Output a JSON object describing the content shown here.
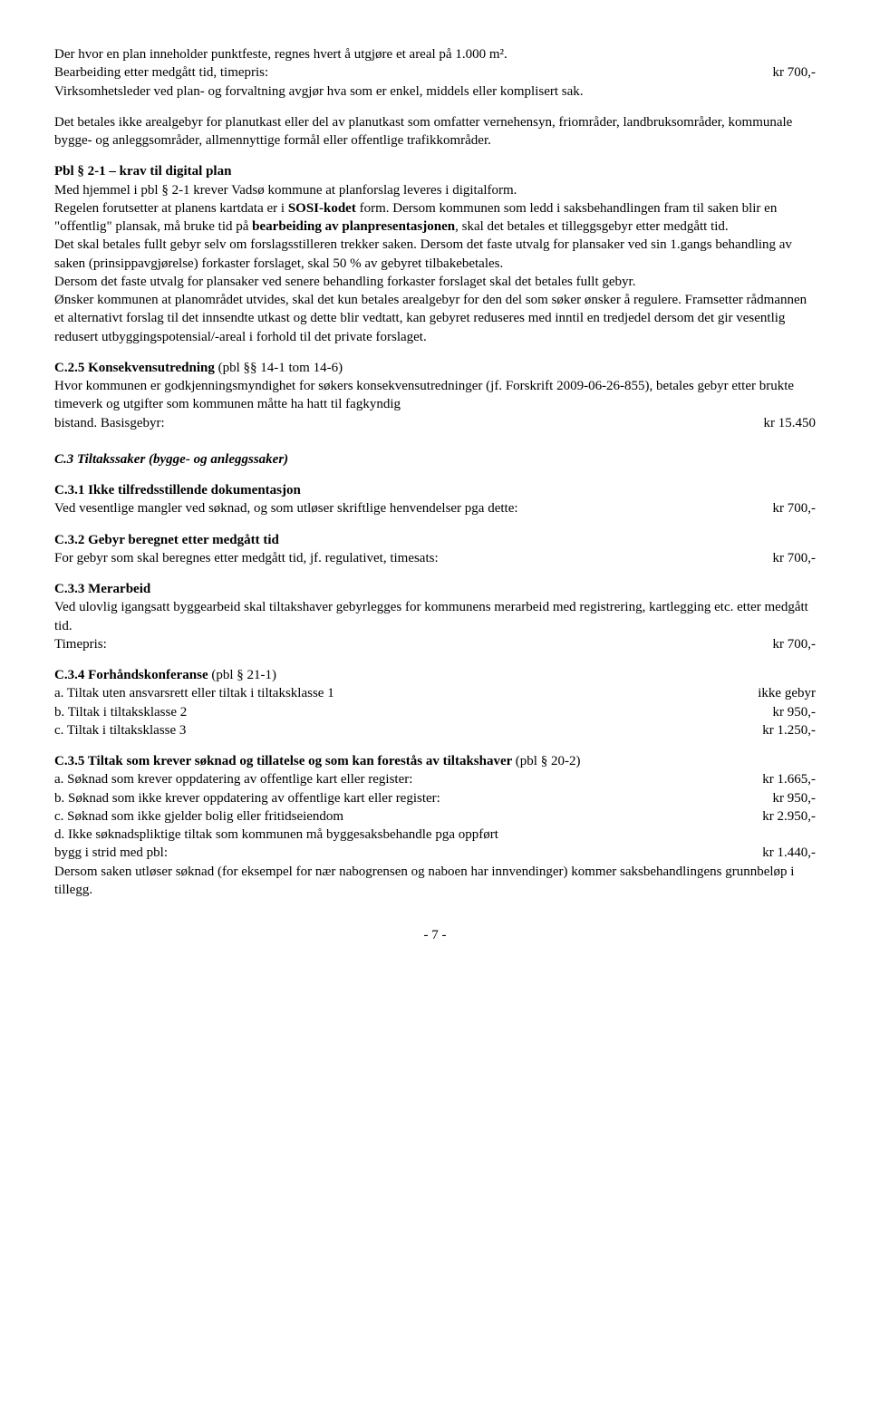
{
  "p1": "Der hvor en plan inneholder punktfeste, regnes hvert å utgjøre et areal på 1.000 m².",
  "p2_left": "Bearbeiding etter medgått tid, timepris:",
  "p2_right": "kr 700,-",
  "p3": "Virksomhetsleder ved plan- og forvaltning avgjør hva som er enkel, middels eller komplisert sak.",
  "p4": "Det betales ikke arealgebyr for planutkast eller del av planutkast som omfatter vernehensyn, friområder, landbruksområder, kommunale bygge- og anleggsområder, allmennyttige formål eller offentlige trafikkområder.",
  "p5_title": "Pbl § 2-1 – krav til digital plan",
  "p5a": "Med hjemmel i pbl § 2-1 krever Vadsø kommune at planforslag leveres i digitalform.",
  "p5b_a": "Regelen forutsetter at planens kartdata er i ",
  "p5b_b": "SOSI-kodet",
  "p5b_c": " form. Dersom kommunen som ledd i saksbehandlingen fram til saken blir en \"offentlig\" plansak, må bruke tid på ",
  "p5b_d": "bearbeiding av planpresentasjonen",
  "p5b_e": ", skal det betales et tilleggsgebyr etter medgått tid.",
  "p5c": "Det skal betales fullt gebyr selv om forslagsstilleren trekker saken. Dersom det faste utvalg for plansaker ved sin 1.gangs behandling av saken (prinsippavgjørelse) forkaster forslaget, skal 50 % av gebyret tilbakebetales.",
  "p5d": "Dersom det faste utvalg for plansaker ved senere behandling forkaster forslaget skal det betales fullt gebyr.",
  "p5e": "Ønsker kommunen at planområdet utvides, skal det kun betales arealgebyr for den del som søker ønsker å regulere. Framsetter rådmannen et alternativt forslag til det innsendte utkast og dette blir vedtatt, kan gebyret reduseres med inntil en tredjedel dersom det gir vesentlig redusert utbyggingspotensial/-areal i forhold til det private forslaget.",
  "c25_title_a": "C.2.5   Konsekvensutredning ",
  "c25_title_b": "(pbl §§ 14-1 tom 14-6)",
  "c25_left_a": "Hvor kommunen er godkjenningsmyndighet for søkers konsekvensutredninger (jf. Forskrift 2009-06-26-855), betales gebyr etter brukte timeverk og utgifter som kommunen måtte ha hatt til fagkyndig",
  "c25_left_b": "bistand. Basisgebyr:",
  "c25_right": "kr 15.450",
  "c3_title": "C.3 Tiltakssaker (bygge- og anleggssaker)",
  "c31_title": "C.3.1   Ikke tilfredsstillende dokumentasjon",
  "c31_left": "Ved vesentlige mangler ved søknad, og som utløser skriftlige henvendelser pga dette:",
  "c31_right": "kr 700,-",
  "c32_title": "C.3.2   Gebyr beregnet etter medgått tid",
  "c32_left": "For gebyr som skal beregnes etter medgått tid, jf. regulativet, timesats:",
  "c32_right": "kr 700,-",
  "c33_title": "C.3.3   Merarbeid",
  "c33_text": "Ved ulovlig igangsatt byggearbeid skal tiltakshaver gebyrlegges for kommunens merarbeid med registrering, kartlegging etc. etter medgått tid.",
  "c33_left": "Timepris:",
  "c33_right": "kr 700,-",
  "c34_title_a": "C.3.4   Forhåndskonferanse ",
  "c34_title_b": "(pbl § 21-1)",
  "c34_a_left": "a. Tiltak uten ansvarsrett eller tiltak i tiltaksklasse 1",
  "c34_a_right": "ikke gebyr",
  "c34_b_left": "b. Tiltak i tiltaksklasse 2",
  "c34_b_right": "kr 950,-",
  "c34_c_left": "c. Tiltak i tiltaksklasse 3",
  "c34_c_right": "kr 1.250,-",
  "c35_title_a": "C.3.5   Tiltak som krever søknad og tillatelse og som kan forestås av tiltakshaver ",
  "c35_title_b": "(pbl § 20-2)",
  "c35_a_left": "a. Søknad som krever oppdatering av offentlige kart eller register:",
  "c35_a_right": "kr 1.665,-",
  "c35_b_left": "b. Søknad som ikke krever oppdatering av offentlige kart eller register:",
  "c35_b_right": "kr 950,-",
  "c35_c_left": "c. Søknad som ikke gjelder bolig eller fritidseiendom",
  "c35_c_right": "kr 2.950,-",
  "c35_d_text": "d. Ikke søknadspliktige tiltak som kommunen må byggesaksbehandle pga oppført",
  "c35_d_left": "bygg i strid med pbl:",
  "c35_d_right": "kr 1.440,-",
  "c35_e": "Dersom saken utløser søknad (for eksempel for nær nabogrensen og naboen har innvendinger) kommer saksbehandlingens grunnbeløp i tillegg.",
  "footer": "- 7 -"
}
